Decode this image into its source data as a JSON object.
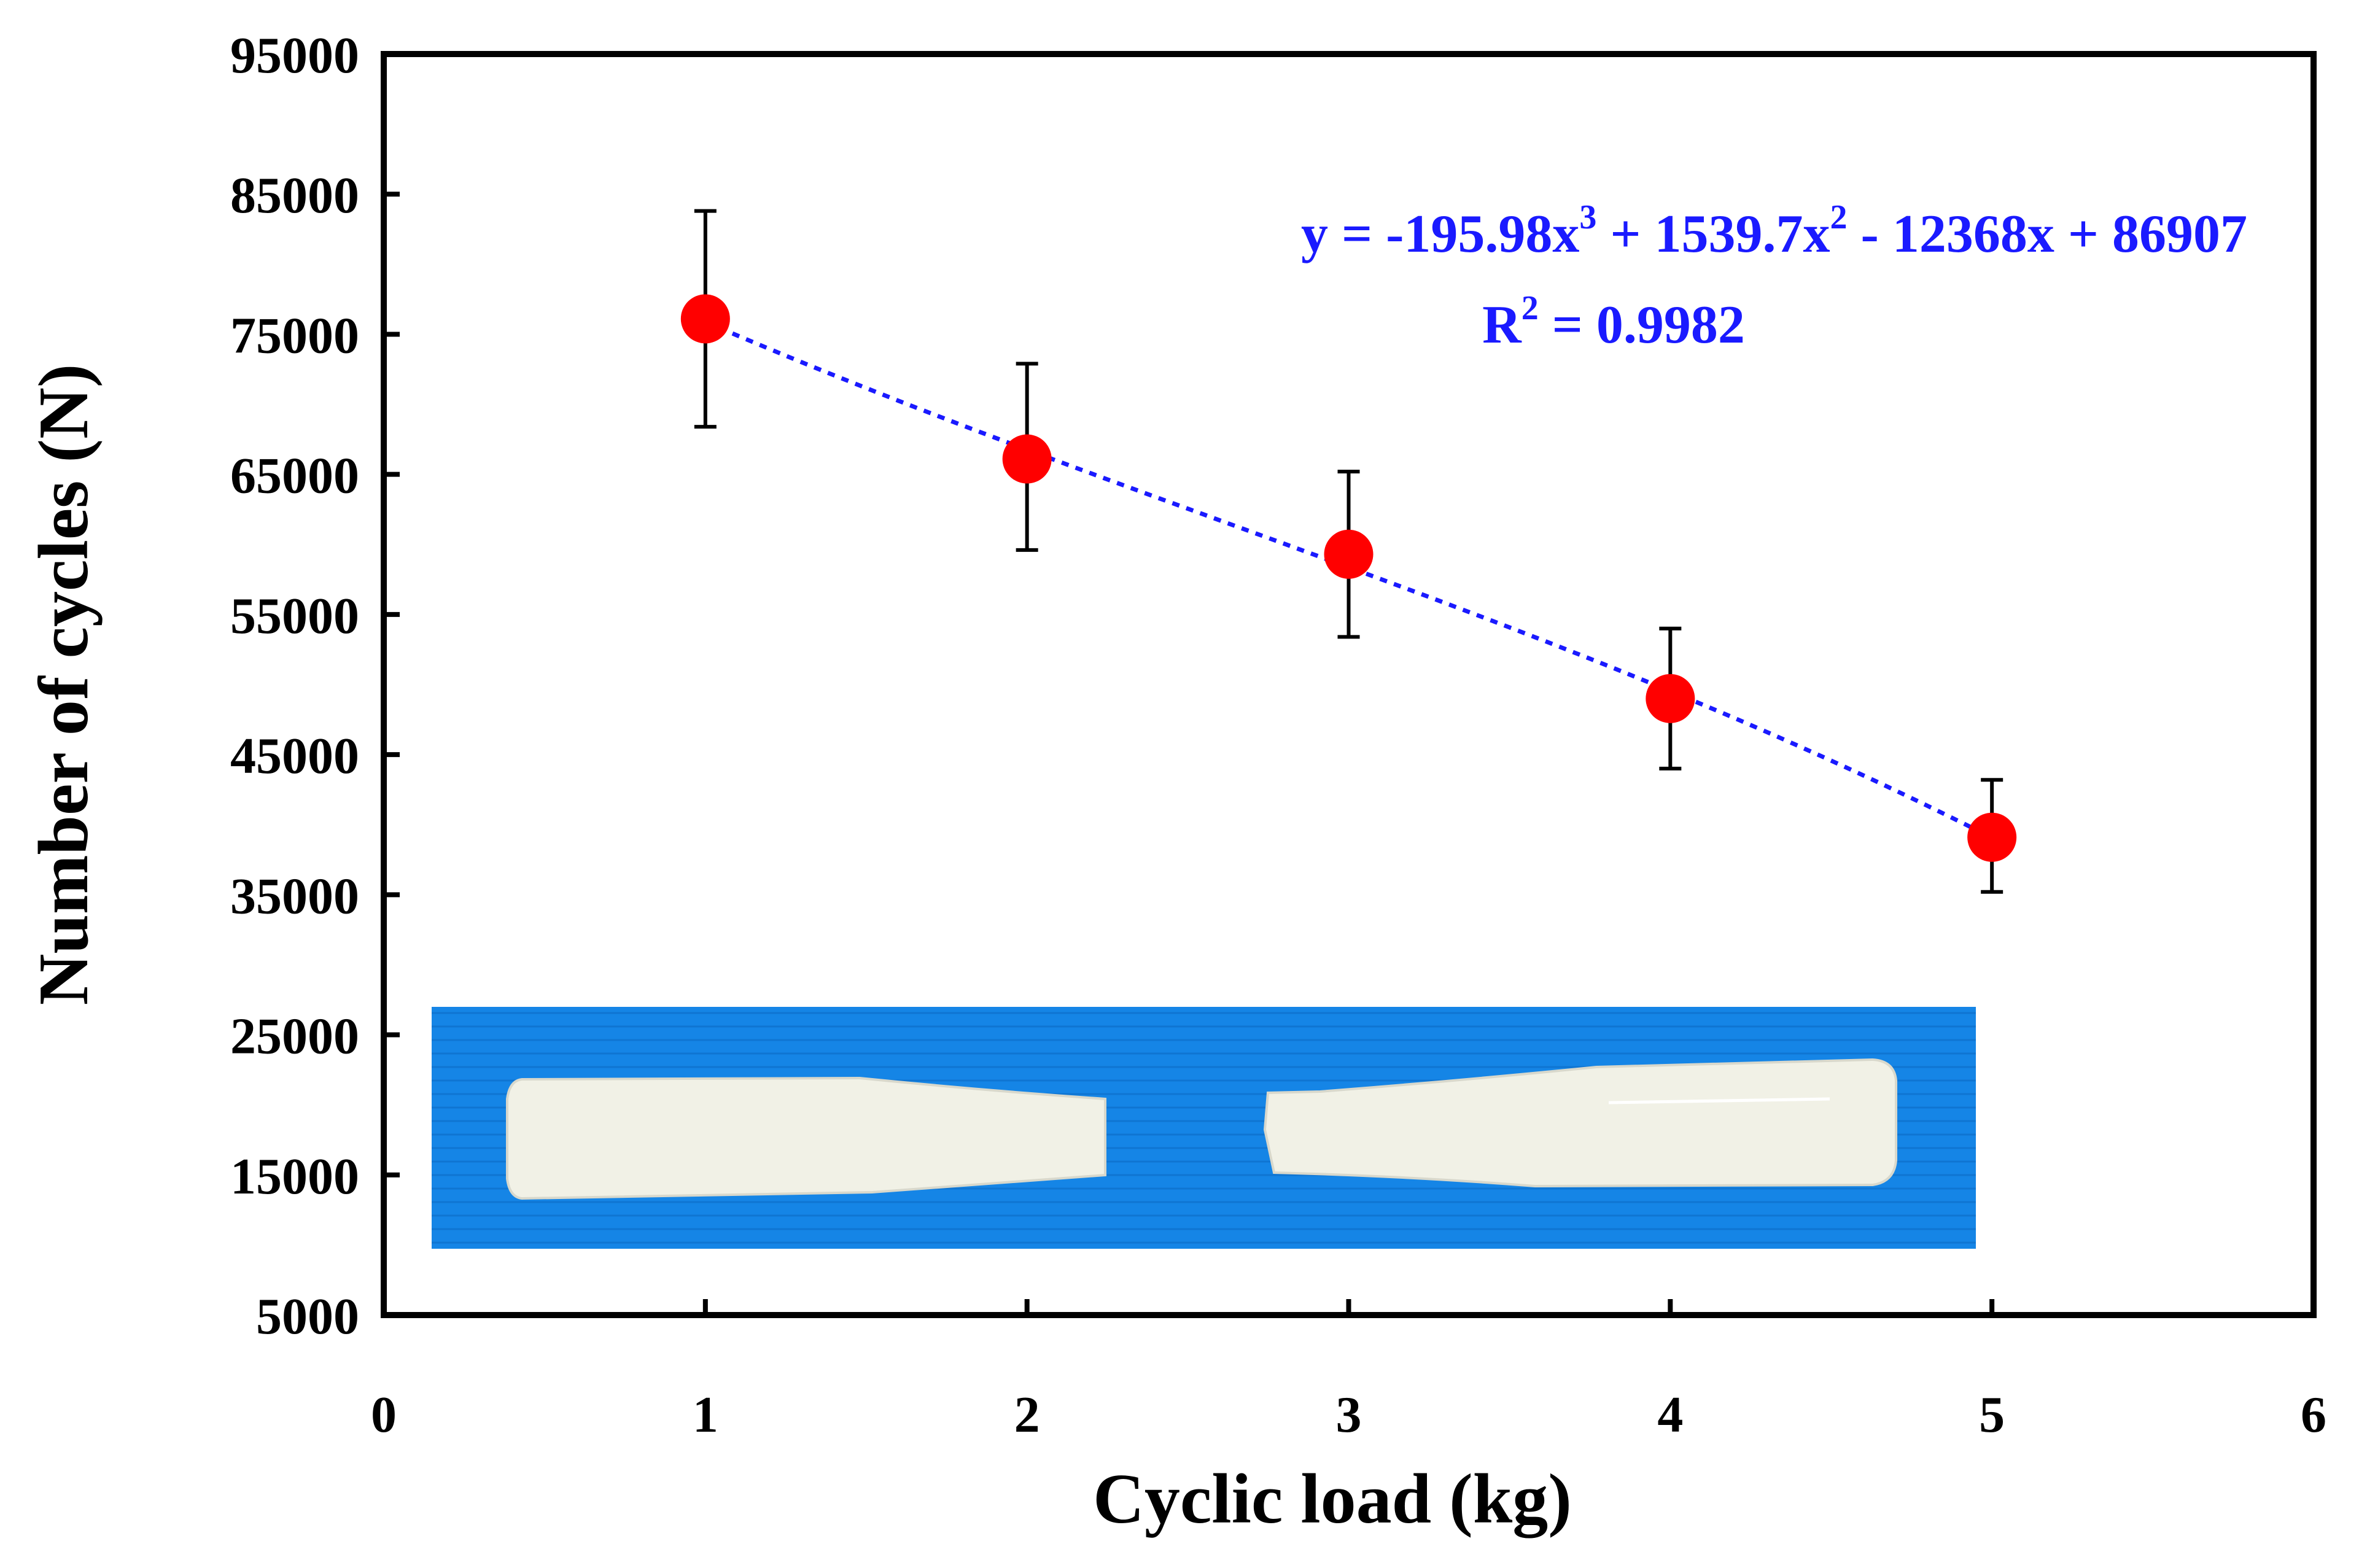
{
  "chart_data": {
    "type": "scatter",
    "xlabel": "Cyclic load (kg)",
    "ylabel": "Number of cycles (N)",
    "xlim": [
      0,
      6
    ],
    "ylim": [
      5000,
      95000
    ],
    "x_ticks": [
      0,
      1,
      2,
      3,
      4,
      5,
      6
    ],
    "y_ticks": [
      5000,
      15000,
      25000,
      35000,
      45000,
      55000,
      65000,
      75000,
      85000,
      95000
    ],
    "grid": false,
    "series": [
      {
        "name": "Number of cycles",
        "x": [
          1,
          2,
          3,
          4,
          5
        ],
        "y": [
          76100,
          66100,
          59300,
          49000,
          39100
        ],
        "error_low": [
          68400,
          59600,
          53400,
          44000,
          35200
        ],
        "error_high": [
          83800,
          72900,
          65200,
          54000,
          43200
        ],
        "color": "#ff0000"
      }
    ],
    "trendline": {
      "type": "polynomial",
      "order": 3,
      "coefficients": [
        -195.98,
        1539.7,
        -12368,
        86907
      ],
      "x_range": [
        1,
        5
      ],
      "color": "#1a1aff"
    },
    "annotation": {
      "eq_prefix": "y = -195.98x",
      "eq_exp1": "3",
      "eq_mid1": " + 1539.7x",
      "eq_exp2": "2",
      "eq_suffix": " - 12368x + 86907",
      "r2_prefix": "R",
      "r2_exp": "2",
      "r2_suffix": " = 0.9982",
      "color": "#1a1aff"
    },
    "inset": {
      "description_icon": "fractured-specimen-photo-icon",
      "background_color": "#1585e6",
      "specimen_color": "#f1f1e6"
    }
  }
}
